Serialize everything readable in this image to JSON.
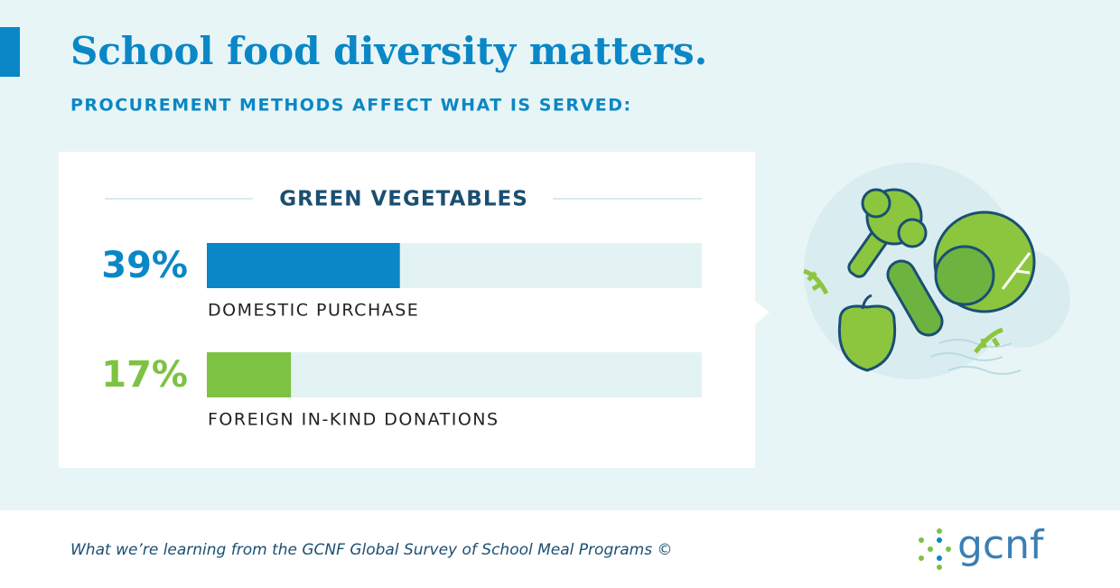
{
  "header": {
    "title": "School food diversity matters.",
    "subtitle": "PROCUREMENT METHODS AFFECT WHAT IS SERVED:"
  },
  "chart_data": {
    "type": "bar",
    "orientation": "horizontal",
    "title": "GREEN VEGETABLES",
    "categories": [
      "DOMESTIC PURCHASE",
      "FOREIGN IN-KIND DONATIONS"
    ],
    "values": [
      39,
      17
    ],
    "value_labels": [
      "39%",
      "17%"
    ],
    "colors": [
      "#0a87c6",
      "#7dc242"
    ],
    "xlim": [
      0,
      100
    ]
  },
  "footer": {
    "text": "What we’re learning from the GCNF Global Survey of School Meal Programs ©",
    "logo": "gcnf"
  }
}
